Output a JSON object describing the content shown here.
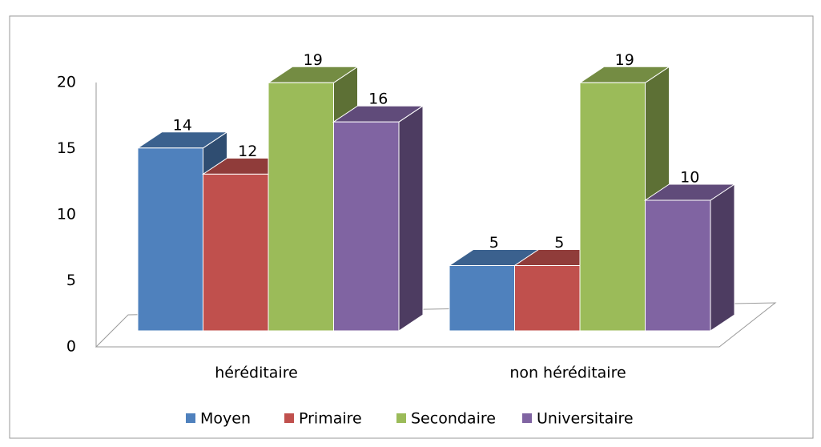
{
  "chart_data": {
    "type": "bar3d",
    "categories": [
      "héréditaire",
      "non héréditaire"
    ],
    "series": [
      {
        "name": "Moyen",
        "color": "#4f81bd",
        "values": [
          14,
          5
        ]
      },
      {
        "name": "Primaire",
        "color": "#c0504d",
        "values": [
          12,
          5
        ]
      },
      {
        "name": "Secondaire",
        "color": "#9bbb59",
        "values": [
          19,
          19
        ]
      },
      {
        "name": "Universitaire",
        "color": "#8064a2",
        "values": [
          16,
          10
        ]
      }
    ],
    "ylim": [
      0,
      20
    ],
    "yticks": [
      0,
      5,
      10,
      15,
      20
    ],
    "legend": "bottom"
  }
}
